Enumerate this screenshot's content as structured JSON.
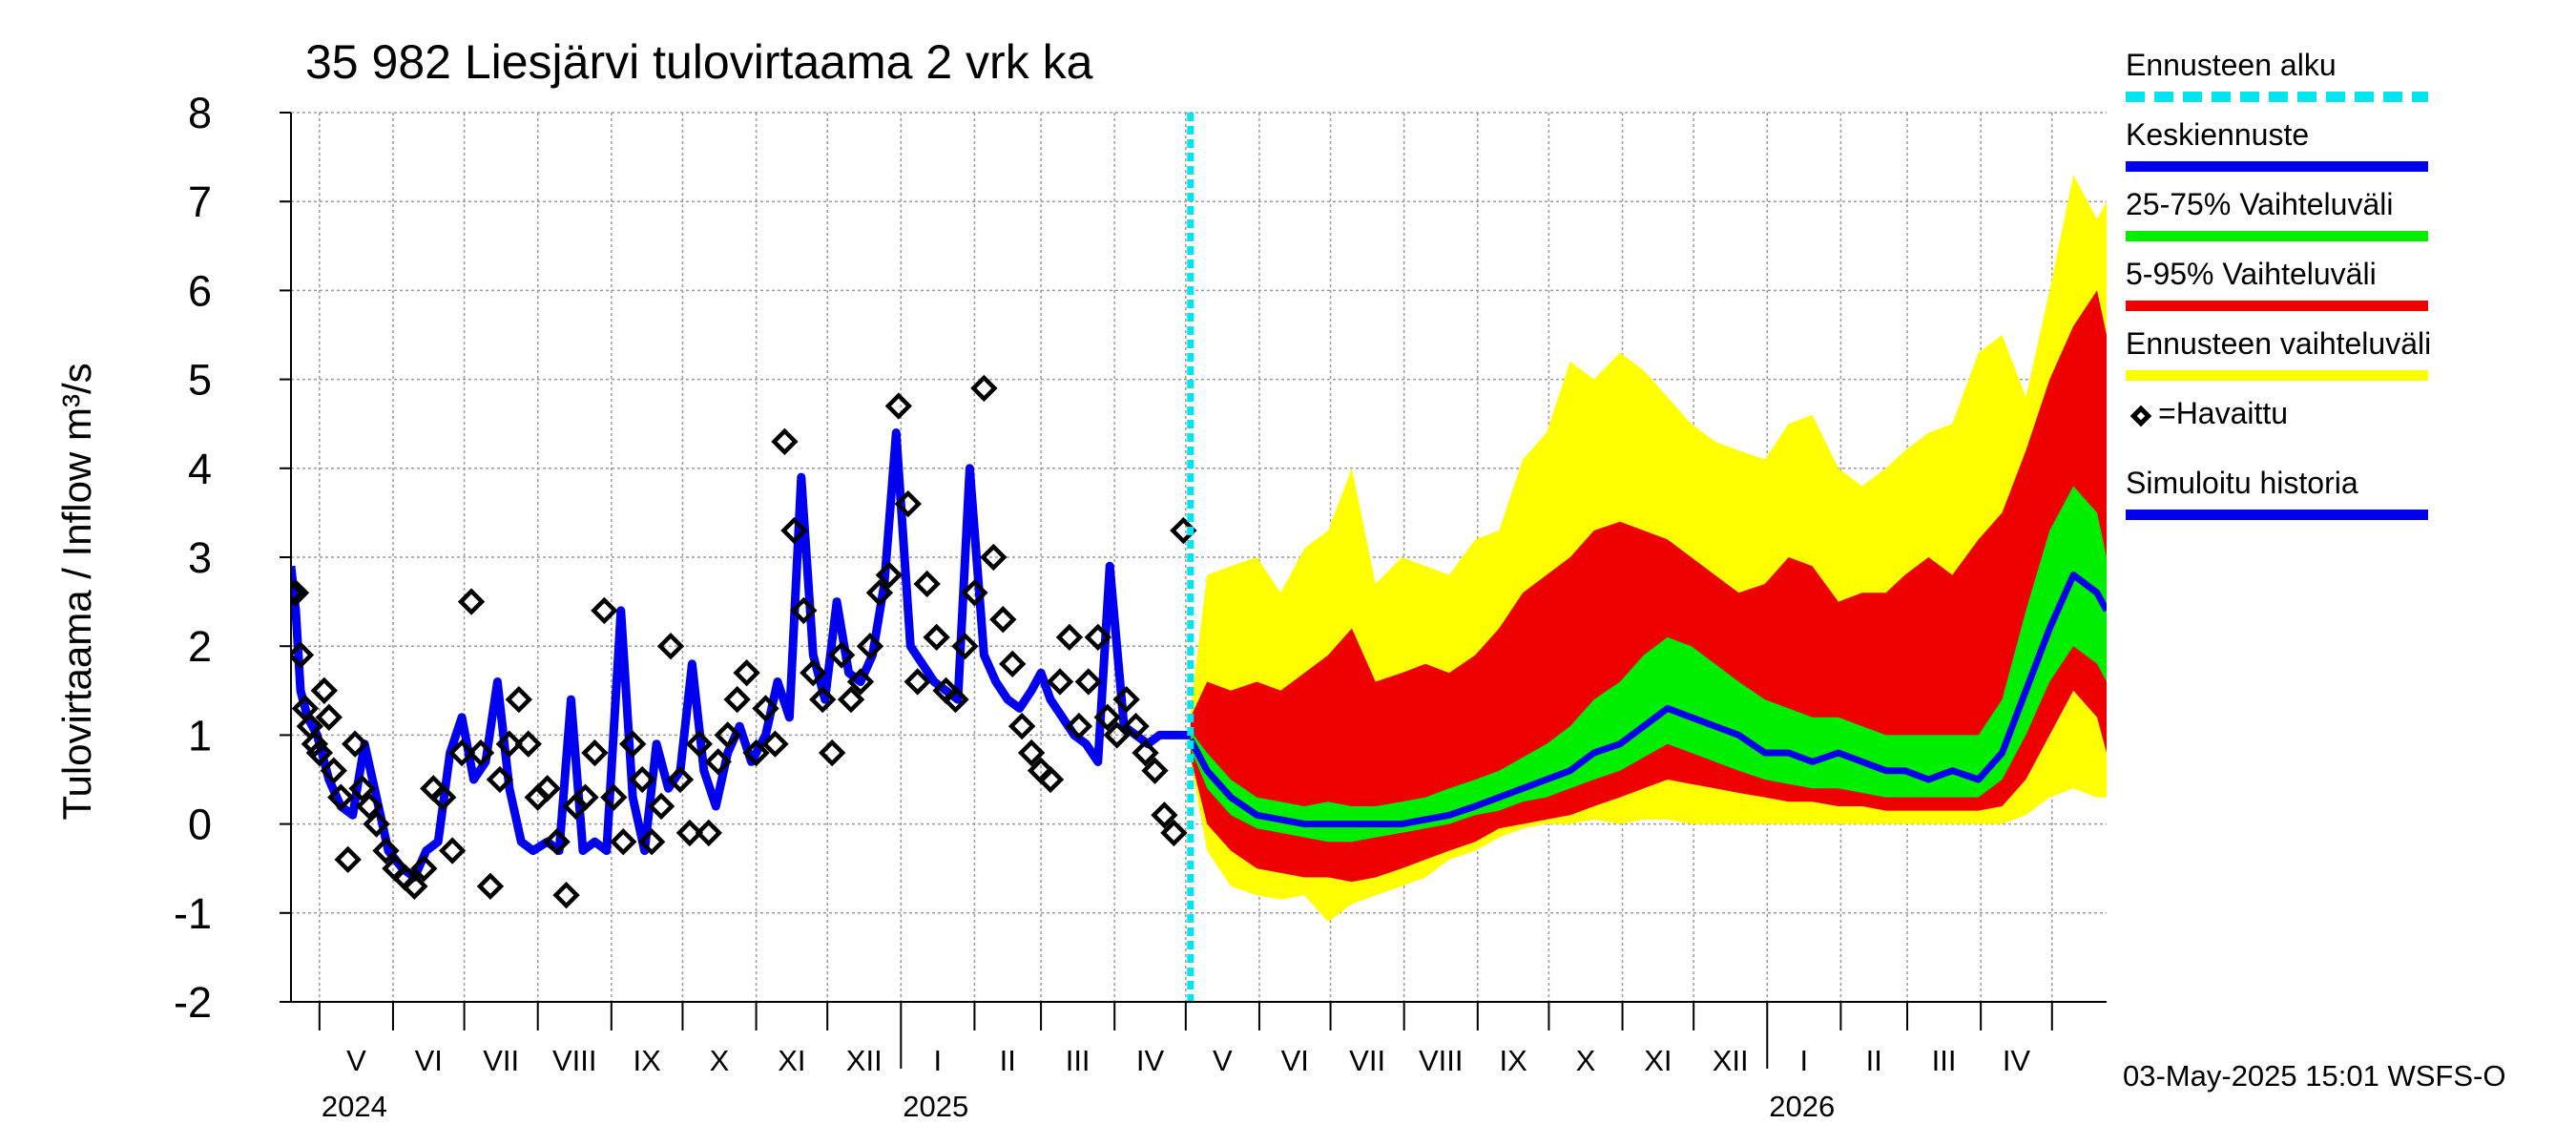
{
  "chart_data": {
    "type": "area",
    "title": "35 982 Liesjärvi tulovirtaama 2 vrk ka",
    "ylabel": "Tulovirtaama / Inflow    m³/s",
    "ylim": [
      -2,
      8
    ],
    "y_ticks": [
      "-2",
      "-1",
      "0",
      "1",
      "2",
      "3",
      "4",
      "5",
      "6",
      "7",
      "8"
    ],
    "x_range": [
      "2024-04-19",
      "2026-05-24"
    ],
    "forecast_start": "2025-05-03",
    "grid": true,
    "legend_position": "right",
    "months": [
      {
        "label": "V",
        "start": "2024-05-01"
      },
      {
        "label": "VI",
        "start": "2024-06-01"
      },
      {
        "label": "VII",
        "start": "2024-07-01"
      },
      {
        "label": "VIII",
        "start": "2024-08-01"
      },
      {
        "label": "IX",
        "start": "2024-09-01"
      },
      {
        "label": "X",
        "start": "2024-10-01"
      },
      {
        "label": "XI",
        "start": "2024-11-01"
      },
      {
        "label": "XII",
        "start": "2024-12-01"
      },
      {
        "label": "I",
        "start": "2025-01-01"
      },
      {
        "label": "II",
        "start": "2025-02-01"
      },
      {
        "label": "III",
        "start": "2025-03-01"
      },
      {
        "label": "IV",
        "start": "2025-04-01"
      },
      {
        "label": "V",
        "start": "2025-05-01"
      },
      {
        "label": "VI",
        "start": "2025-06-01"
      },
      {
        "label": "VII",
        "start": "2025-07-01"
      },
      {
        "label": "VIII",
        "start": "2025-08-01"
      },
      {
        "label": "IX",
        "start": "2025-09-01"
      },
      {
        "label": "X",
        "start": "2025-10-01"
      },
      {
        "label": "XI",
        "start": "2025-11-01"
      },
      {
        "label": "XII",
        "start": "2025-12-01"
      },
      {
        "label": "I",
        "start": "2026-01-01"
      },
      {
        "label": "II",
        "start": "2026-02-01"
      },
      {
        "label": "III",
        "start": "2026-03-01"
      },
      {
        "label": "IV",
        "start": "2026-04-01"
      }
    ],
    "month_end": "2026-05-01",
    "year_labels": [
      {
        "label": "2024",
        "date": "2024-05-01"
      },
      {
        "label": "2025",
        "date": "2025-01-01"
      },
      {
        "label": "2026",
        "date": "2026-01-01"
      }
    ],
    "simulated_history": {
      "name": "Simuloitu historia",
      "x": [
        "2024-04-19",
        "2024-04-21",
        "2024-04-23",
        "2024-04-26",
        "2024-04-30",
        "2024-05-05",
        "2024-05-10",
        "2024-05-15",
        "2024-05-20",
        "2024-05-25",
        "2024-05-30",
        "2024-06-05",
        "2024-06-10",
        "2024-06-15",
        "2024-06-20",
        "2024-06-25",
        "2024-06-30",
        "2024-07-05",
        "2024-07-10",
        "2024-07-15",
        "2024-07-20",
        "2024-07-25",
        "2024-07-30",
        "2024-08-05",
        "2024-08-10",
        "2024-08-15",
        "2024-08-20",
        "2024-08-25",
        "2024-08-30",
        "2024-09-05",
        "2024-09-10",
        "2024-09-15",
        "2024-09-20",
        "2024-09-25",
        "2024-09-30",
        "2024-10-05",
        "2024-10-10",
        "2024-10-15",
        "2024-10-20",
        "2024-10-25",
        "2024-10-30",
        "2024-11-05",
        "2024-11-10",
        "2024-11-15",
        "2024-11-20",
        "2024-11-25",
        "2024-11-30",
        "2024-12-05",
        "2024-12-10",
        "2024-12-15",
        "2024-12-20",
        "2024-12-25",
        "2024-12-30",
        "2025-01-05",
        "2025-01-10",
        "2025-01-15",
        "2025-01-20",
        "2025-01-25",
        "2025-01-30",
        "2025-02-05",
        "2025-02-10",
        "2025-02-15",
        "2025-02-20",
        "2025-02-25",
        "2025-03-01",
        "2025-03-05",
        "2025-03-10",
        "2025-03-15",
        "2025-03-20",
        "2025-03-25",
        "2025-03-30",
        "2025-04-05",
        "2025-04-10",
        "2025-04-15",
        "2025-04-20",
        "2025-04-25",
        "2025-04-30",
        "2025-05-03"
      ],
      "y": [
        2.9,
        2.4,
        1.5,
        1.2,
        1.0,
        0.5,
        0.2,
        0.1,
        0.9,
        0.3,
        -0.3,
        -0.5,
        -0.6,
        -0.3,
        -0.2,
        0.8,
        1.2,
        0.5,
        0.7,
        1.6,
        0.4,
        -0.2,
        -0.3,
        -0.2,
        -0.3,
        1.4,
        -0.3,
        -0.2,
        -0.3,
        2.4,
        0.3,
        -0.3,
        0.9,
        0.4,
        0.6,
        1.8,
        0.6,
        0.2,
        0.8,
        1.1,
        0.7,
        1.0,
        1.6,
        1.2,
        3.9,
        1.9,
        1.4,
        2.5,
        1.7,
        1.6,
        1.9,
        2.7,
        4.4,
        2.0,
        1.8,
        1.6,
        1.5,
        1.4,
        4.0,
        1.9,
        1.6,
        1.4,
        1.3,
        1.5,
        1.7,
        1.4,
        1.2,
        1.0,
        0.9,
        0.7,
        2.9,
        1.1,
        1.0,
        0.9,
        1.0,
        1.0,
        1.0,
        1.0
      ]
    },
    "observed": {
      "name": "=Havaittu",
      "x": [
        "2024-04-19",
        "2024-04-21",
        "2024-04-23",
        "2024-04-25",
        "2024-04-27",
        "2024-04-29",
        "2024-05-01",
        "2024-05-03",
        "2024-05-05",
        "2024-05-07",
        "2024-05-10",
        "2024-05-13",
        "2024-05-16",
        "2024-05-19",
        "2024-05-22",
        "2024-05-25",
        "2024-05-29",
        "2024-06-02",
        "2024-06-06",
        "2024-06-10",
        "2024-06-14",
        "2024-06-18",
        "2024-06-22",
        "2024-06-26",
        "2024-06-30",
        "2024-07-04",
        "2024-07-08",
        "2024-07-12",
        "2024-07-16",
        "2024-07-20",
        "2024-07-24",
        "2024-07-28",
        "2024-08-01",
        "2024-08-05",
        "2024-08-09",
        "2024-08-13",
        "2024-08-17",
        "2024-08-21",
        "2024-08-25",
        "2024-08-29",
        "2024-09-02",
        "2024-09-06",
        "2024-09-10",
        "2024-09-14",
        "2024-09-18",
        "2024-09-22",
        "2024-09-26",
        "2024-09-30",
        "2024-10-04",
        "2024-10-08",
        "2024-10-12",
        "2024-10-16",
        "2024-10-20",
        "2024-10-24",
        "2024-10-28",
        "2024-11-01",
        "2024-11-05",
        "2024-11-09",
        "2024-11-13",
        "2024-11-17",
        "2024-11-21",
        "2024-11-25",
        "2024-11-29",
        "2024-12-03",
        "2024-12-07",
        "2024-12-11",
        "2024-12-15",
        "2024-12-19",
        "2024-12-23",
        "2024-12-27",
        "2024-12-31",
        "2025-01-04",
        "2025-01-08",
        "2025-01-12",
        "2025-01-16",
        "2025-01-20",
        "2025-01-24",
        "2025-01-28",
        "2025-02-01",
        "2025-02-05",
        "2025-02-09",
        "2025-02-13",
        "2025-02-17",
        "2025-02-21",
        "2025-02-25",
        "2025-03-01",
        "2025-03-05",
        "2025-03-09",
        "2025-03-13",
        "2025-03-17",
        "2025-03-21",
        "2025-03-25",
        "2025-03-29",
        "2025-04-02",
        "2025-04-06",
        "2025-04-10",
        "2025-04-14",
        "2025-04-18",
        "2025-04-22",
        "2025-04-26",
        "2025-04-30"
      ],
      "y": [
        2.6,
        2.6,
        1.9,
        1.3,
        1.1,
        0.9,
        0.8,
        1.5,
        1.2,
        0.6,
        0.3,
        -0.4,
        0.9,
        0.4,
        0.2,
        0.0,
        -0.3,
        -0.5,
        -0.6,
        -0.7,
        -0.5,
        0.4,
        0.3,
        -0.3,
        0.8,
        2.5,
        0.8,
        -0.7,
        0.5,
        0.9,
        1.4,
        0.9,
        0.3,
        0.4,
        -0.2,
        -0.8,
        0.2,
        0.3,
        0.8,
        2.4,
        0.3,
        -0.2,
        0.9,
        0.5,
        -0.2,
        0.2,
        2.0,
        0.5,
        -0.1,
        0.9,
        -0.1,
        0.7,
        1.0,
        1.4,
        1.7,
        0.8,
        1.3,
        0.9,
        4.3,
        3.3,
        2.4,
        1.7,
        1.4,
        0.8,
        1.9,
        1.4,
        1.6,
        2.0,
        2.6,
        2.8,
        4.7,
        3.6,
        1.6,
        2.7,
        2.1,
        1.5,
        1.4,
        2.0,
        2.6,
        4.9,
        3.0,
        2.3,
        1.8,
        1.1,
        0.8,
        0.6,
        0.5,
        1.6,
        2.1,
        1.1,
        1.6,
        2.1,
        1.2,
        1.0,
        1.4,
        1.1,
        0.8,
        0.6,
        0.1,
        -0.1,
        3.3
      ]
    },
    "forecast": {
      "x": [
        "2025-05-03",
        "2025-05-10",
        "2025-05-20",
        "2025-05-31",
        "2025-06-10",
        "2025-06-20",
        "2025-06-30",
        "2025-07-10",
        "2025-07-20",
        "2025-07-31",
        "2025-08-10",
        "2025-08-20",
        "2025-08-31",
        "2025-09-10",
        "2025-09-20",
        "2025-09-30",
        "2025-10-10",
        "2025-10-20",
        "2025-10-31",
        "2025-11-10",
        "2025-11-20",
        "2025-11-30",
        "2025-12-10",
        "2025-12-20",
        "2025-12-31",
        "2026-01-10",
        "2026-01-20",
        "2026-01-31",
        "2026-02-10",
        "2026-02-20",
        "2026-02-28",
        "2026-03-10",
        "2026-03-20",
        "2026-03-31",
        "2026-04-10",
        "2026-04-20",
        "2026-04-30",
        "2026-05-10",
        "2026-05-20",
        "2026-05-24"
      ],
      "median": {
        "name": "Keskiennuste",
        "y": [
          0.95,
          0.6,
          0.3,
          0.1,
          0.05,
          0.0,
          0.0,
          0.0,
          0.0,
          0.0,
          0.05,
          0.1,
          0.2,
          0.3,
          0.4,
          0.5,
          0.6,
          0.8,
          0.9,
          1.1,
          1.3,
          1.2,
          1.1,
          1.0,
          0.8,
          0.8,
          0.7,
          0.8,
          0.7,
          0.6,
          0.6,
          0.5,
          0.6,
          0.5,
          0.8,
          1.5,
          2.2,
          2.8,
          2.6,
          2.4
        ]
      },
      "p25": {
        "y": [
          0.85,
          0.4,
          0.1,
          -0.05,
          -0.1,
          -0.15,
          -0.2,
          -0.2,
          -0.15,
          -0.1,
          -0.05,
          0.0,
          0.1,
          0.15,
          0.25,
          0.3,
          0.4,
          0.5,
          0.6,
          0.75,
          0.9,
          0.8,
          0.7,
          0.6,
          0.5,
          0.45,
          0.4,
          0.4,
          0.35,
          0.3,
          0.3,
          0.3,
          0.3,
          0.3,
          0.5,
          1.0,
          1.6,
          2.0,
          1.8,
          1.6
        ]
      },
      "p75": {
        "y": [
          1.05,
          0.8,
          0.5,
          0.3,
          0.25,
          0.2,
          0.25,
          0.2,
          0.2,
          0.25,
          0.3,
          0.4,
          0.5,
          0.6,
          0.75,
          0.9,
          1.1,
          1.4,
          1.6,
          1.9,
          2.1,
          2.0,
          1.8,
          1.6,
          1.4,
          1.3,
          1.2,
          1.2,
          1.1,
          1.0,
          1.0,
          1.0,
          1.0,
          1.0,
          1.4,
          2.4,
          3.3,
          3.8,
          3.5,
          3.0
        ]
      },
      "p5": {
        "y": [
          0.75,
          0.0,
          -0.3,
          -0.5,
          -0.55,
          -0.6,
          -0.6,
          -0.65,
          -0.6,
          -0.5,
          -0.4,
          -0.3,
          -0.2,
          -0.05,
          0.0,
          0.05,
          0.1,
          0.2,
          0.3,
          0.4,
          0.5,
          0.45,
          0.4,
          0.35,
          0.3,
          0.25,
          0.25,
          0.2,
          0.2,
          0.15,
          0.15,
          0.15,
          0.15,
          0.15,
          0.2,
          0.5,
          1.0,
          1.5,
          1.2,
          0.8
        ]
      },
      "p95": {
        "y": [
          1.2,
          1.6,
          1.5,
          1.6,
          1.5,
          1.7,
          1.9,
          2.2,
          1.6,
          1.7,
          1.8,
          1.7,
          1.9,
          2.2,
          2.6,
          2.8,
          3.0,
          3.3,
          3.4,
          3.3,
          3.2,
          3.0,
          2.8,
          2.6,
          2.7,
          3.0,
          2.9,
          2.5,
          2.6,
          2.6,
          2.8,
          3.0,
          2.8,
          3.2,
          3.5,
          4.2,
          5.0,
          5.6,
          6.0,
          5.5
        ]
      },
      "min": {
        "y": [
          0.7,
          -0.3,
          -0.7,
          -0.8,
          -0.85,
          -0.8,
          -1.1,
          -0.9,
          -0.8,
          -0.7,
          -0.6,
          -0.4,
          -0.3,
          -0.15,
          -0.05,
          0.0,
          0.0,
          0.05,
          0.0,
          0.05,
          0.05,
          0.0,
          0.0,
          0.0,
          0.0,
          0.0,
          0.0,
          0.0,
          0.0,
          0.0,
          0.0,
          0.0,
          0.0,
          0.0,
          0.0,
          0.1,
          0.3,
          0.4,
          0.3,
          0.3
        ]
      },
      "max": {
        "y": [
          1.3,
          2.8,
          2.9,
          3.0,
          2.6,
          3.1,
          3.3,
          4.0,
          2.7,
          3.0,
          2.9,
          2.8,
          3.2,
          3.3,
          4.1,
          4.4,
          5.2,
          5.0,
          5.3,
          5.1,
          4.8,
          4.5,
          4.3,
          4.2,
          4.1,
          4.5,
          4.6,
          4.0,
          3.8,
          4.0,
          4.2,
          4.4,
          4.5,
          5.3,
          5.5,
          4.8,
          6.0,
          7.3,
          6.8,
          7.0
        ]
      }
    },
    "legend": [
      {
        "label": "Ennusteen alku",
        "color": "#00e5ee",
        "style": "dashed"
      },
      {
        "label": "Keskiennuste",
        "color": "#0000ee",
        "style": "line"
      },
      {
        "label": "25-75% Vaihteluväli",
        "color": "#00ee00",
        "style": "line"
      },
      {
        "label": "5-95% Vaihteluväli",
        "color": "#ee0000",
        "style": "line"
      },
      {
        "label": "Ennusteen vaihteluväli",
        "color": "#ffff00",
        "style": "line"
      },
      {
        "label": "=Havaittu",
        "color": "#000000",
        "style": "diamond"
      },
      {
        "label": "Simuloitu historia",
        "color": "#0000ee",
        "style": "line"
      }
    ],
    "timestamp": "03-May-2025 15:01 WSFS-O"
  }
}
